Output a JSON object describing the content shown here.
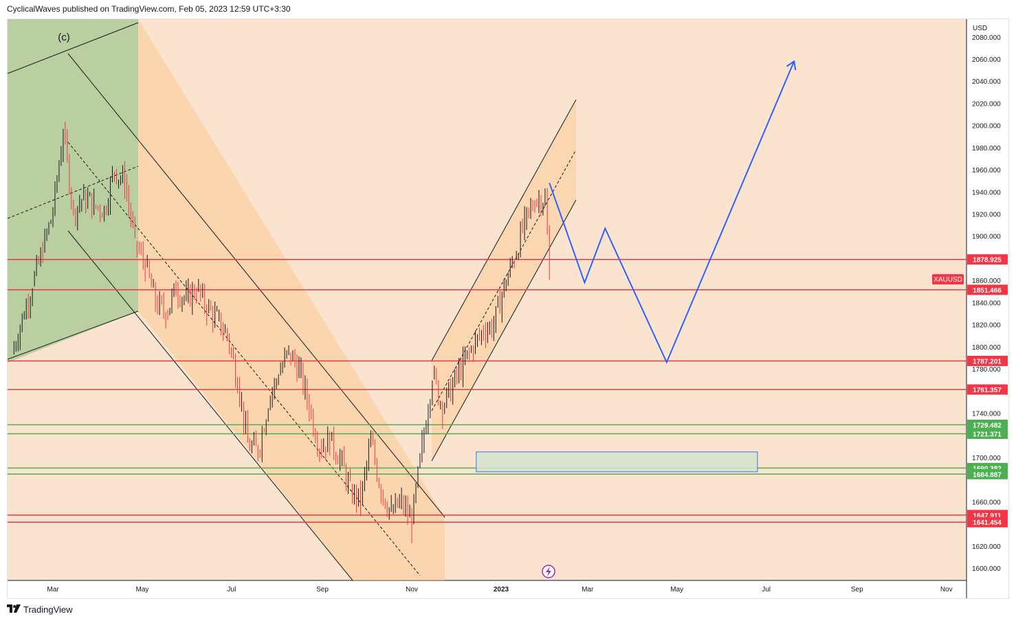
{
  "header": {
    "text": "CyclicalWaves published on TradingView.com, Feb 05, 2023 12:59 UTC+3:30"
  },
  "footer": {
    "logo_icon": "tradingview-logo-icon",
    "brand": "TradingView"
  },
  "chart_data": {
    "type": "candlestick",
    "symbol": "XAUUSD",
    "currency": "USD",
    "wave_label": "(c)",
    "background": "#fbe4cf",
    "x_tick_labels": [
      "Mar",
      "May",
      "Jul",
      "Sep",
      "Nov",
      "2023",
      "Mar",
      "May",
      "Jul",
      "Sep",
      "Nov"
    ],
    "y_ticks": [
      "2080.000",
      "2060.000",
      "2040.000",
      "2020.000",
      "2000.000",
      "1980.000",
      "1960.000",
      "1940.000",
      "1920.000",
      "1900.000",
      "1860.000",
      "1840.000",
      "1820.000",
      "1800.000",
      "1780.000",
      "1740.000",
      "1700.000",
      "1660.000",
      "1620.000",
      "1600.000"
    ],
    "ylim": [
      1588,
      2090
    ],
    "levels": [
      {
        "value": 1878.925,
        "label": "1878.925",
        "color": "#f23645"
      },
      {
        "value": 1851.466,
        "label": "1851.466",
        "color": "#f23645"
      },
      {
        "value": 1787.201,
        "label": "1787.201",
        "color": "#f23645"
      },
      {
        "value": 1761.357,
        "label": "1761.357",
        "color": "#f23645"
      },
      {
        "value": 1729.482,
        "label": "1729.482",
        "color": "#4caf50"
      },
      {
        "value": 1721.371,
        "label": "1721.371",
        "color": "#4caf50"
      },
      {
        "value": 1690.382,
        "label": "1690.382",
        "color": "#4caf50"
      },
      {
        "value": 1684.887,
        "label": "1684.887",
        "color": "#4caf50"
      },
      {
        "value": 1647.911,
        "label": "1647.911",
        "color": "#f23645"
      },
      {
        "value": 1641.454,
        "label": "1641.454",
        "color": "#f23645"
      }
    ],
    "symbol_tag": {
      "label": "XAUUSD",
      "value": 1861,
      "color": "#f23645"
    },
    "close_series": [
      [
        "2022-02-01",
        1794
      ],
      [
        "2022-02-08",
        1826
      ],
      [
        "2022-02-15",
        1856
      ],
      [
        "2022-02-22",
        1887
      ],
      [
        "2022-03-01",
        1922
      ],
      [
        "2022-03-08",
        1995
      ],
      [
        "2022-03-15",
        1922
      ],
      [
        "2022-03-22",
        1936
      ],
      [
        "2022-03-29",
        1928
      ],
      [
        "2022-04-05",
        1924
      ],
      [
        "2022-04-12",
        1960
      ],
      [
        "2022-04-19",
        1948
      ],
      [
        "2022-04-26",
        1895
      ],
      [
        "2022-05-03",
        1873
      ],
      [
        "2022-05-10",
        1840
      ],
      [
        "2022-05-17",
        1830
      ],
      [
        "2022-05-24",
        1852
      ],
      [
        "2022-05-31",
        1843
      ],
      [
        "2022-06-07",
        1852
      ],
      [
        "2022-06-14",
        1835
      ],
      [
        "2022-06-21",
        1825
      ],
      [
        "2022-06-28",
        1810
      ],
      [
        "2022-07-05",
        1770
      ],
      [
        "2022-07-12",
        1712
      ],
      [
        "2022-07-19",
        1705
      ],
      [
        "2022-07-26",
        1750
      ],
      [
        "2022-08-02",
        1775
      ],
      [
        "2022-08-09",
        1795
      ],
      [
        "2022-08-16",
        1780
      ],
      [
        "2022-08-23",
        1745
      ],
      [
        "2022-08-30",
        1710
      ],
      [
        "2022-09-06",
        1715
      ],
      [
        "2022-09-13",
        1700
      ],
      [
        "2022-09-20",
        1670
      ],
      [
        "2022-09-27",
        1660
      ],
      [
        "2022-10-04",
        1715
      ],
      [
        "2022-10-11",
        1670
      ],
      [
        "2022-10-18",
        1650
      ],
      [
        "2022-10-25",
        1660
      ],
      [
        "2022-11-01",
        1640
      ],
      [
        "2022-11-08",
        1710
      ],
      [
        "2022-11-15",
        1775
      ],
      [
        "2022-11-22",
        1745
      ],
      [
        "2022-11-29",
        1765
      ],
      [
        "2022-12-06",
        1785
      ],
      [
        "2022-12-13",
        1800
      ],
      [
        "2022-12-20",
        1815
      ],
      [
        "2022-12-27",
        1820
      ],
      [
        "2023-01-03",
        1855
      ],
      [
        "2023-01-10",
        1880
      ],
      [
        "2023-01-17",
        1912
      ],
      [
        "2023-01-24",
        1932
      ],
      [
        "2023-01-31",
        1935
      ],
      [
        "2023-02-03",
        1863
      ]
    ],
    "projection_path": [
      [
        "2023-02-03",
        1948
      ],
      [
        "2023-02-27",
        1858
      ],
      [
        "2023-03-13",
        1907
      ],
      [
        "2023-04-24",
        1786
      ],
      [
        "2023-07-20",
        2058
      ]
    ],
    "projection_color": "#2962ff",
    "zones": [
      {
        "name": "wave-c-channel-zone",
        "color": "#8fc27f"
      },
      {
        "name": "down-channel-zone",
        "color": "#fcc994"
      },
      {
        "name": "up-channel-zone",
        "color": "#fcc994"
      },
      {
        "name": "target-zone",
        "color": "#d6e5cc",
        "border": "#2962ff",
        "y_range": [
          1687,
          1705
        ],
        "x_range": [
          "2022-12-15",
          "2023-06-25"
        ]
      }
    ]
  }
}
